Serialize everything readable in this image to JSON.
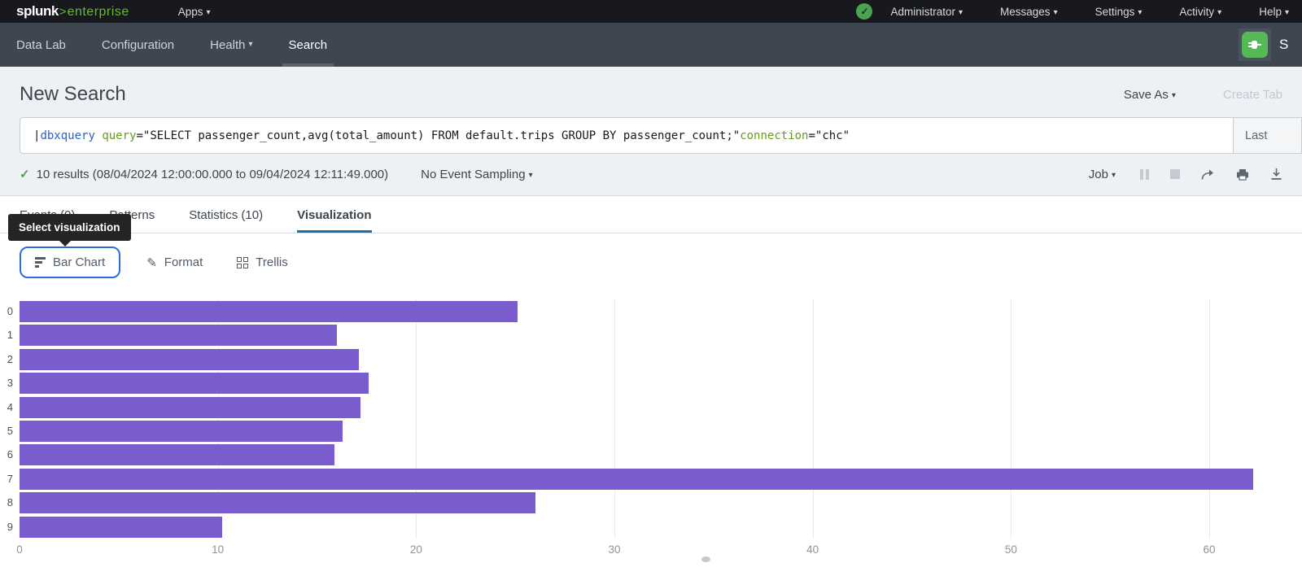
{
  "topnav": {
    "logo_brand": "splunk",
    "logo_gt": ">",
    "logo_product": "enterprise",
    "apps": "Apps",
    "caret": "▾",
    "status_check": "✓",
    "account": "Administrator",
    "messages": "Messages",
    "settings": "Settings",
    "activity": "Activity",
    "help": "Help"
  },
  "appnav": {
    "items": [
      "Data Lab",
      "Configuration",
      "Health",
      "Search"
    ],
    "caret": "▾",
    "app_badge_label": "S"
  },
  "header": {
    "title": "New Search",
    "save_as": "Save As",
    "create_table": "Create Tab",
    "caret": "▾"
  },
  "search": {
    "pipe": "| ",
    "command": "dbxquery",
    "param1_name": "query",
    "param1_value": "=\"SELECT passenger_count,avg(total_amount) FROM default.trips GROUP BY passenger_count;\" ",
    "param2_name": "connection",
    "param2_value": "=\"chc\"",
    "time_range": "Last"
  },
  "results": {
    "check": "✓",
    "summary": "10 results (08/04/2024 12:00:00.000 to 09/04/2024 12:11:49.000)",
    "sampling": "No Event Sampling",
    "job": "Job",
    "caret": "▾"
  },
  "tabs": {
    "events": "Events (0)",
    "patterns": "Patterns",
    "statistics": "Statistics (10)",
    "visualization": "Visualization"
  },
  "tooltip": {
    "text": "Select visualization"
  },
  "viz_toolbar": {
    "chart_type": "Bar Chart",
    "format": "Format",
    "trellis": "Trellis",
    "pencil": "✎"
  },
  "chart_data": {
    "type": "bar",
    "orientation": "horizontal",
    "title": "",
    "xlabel": "",
    "ylabel": "",
    "categories": [
      "0",
      "1",
      "2",
      "3",
      "4",
      "5",
      "6",
      "7",
      "8",
      "9"
    ],
    "series": [
      {
        "name": "avg(total_amount)",
        "values": [
          25.1,
          16.0,
          17.1,
          17.6,
          17.2,
          16.3,
          15.9,
          62.2,
          26.0,
          10.2
        ]
      }
    ],
    "x_ticks": [
      0,
      10,
      20,
      30,
      40,
      50,
      60
    ],
    "xlim": [
      0,
      64
    ],
    "grid": true,
    "legend": false,
    "bar_color": "#7b5cce"
  }
}
